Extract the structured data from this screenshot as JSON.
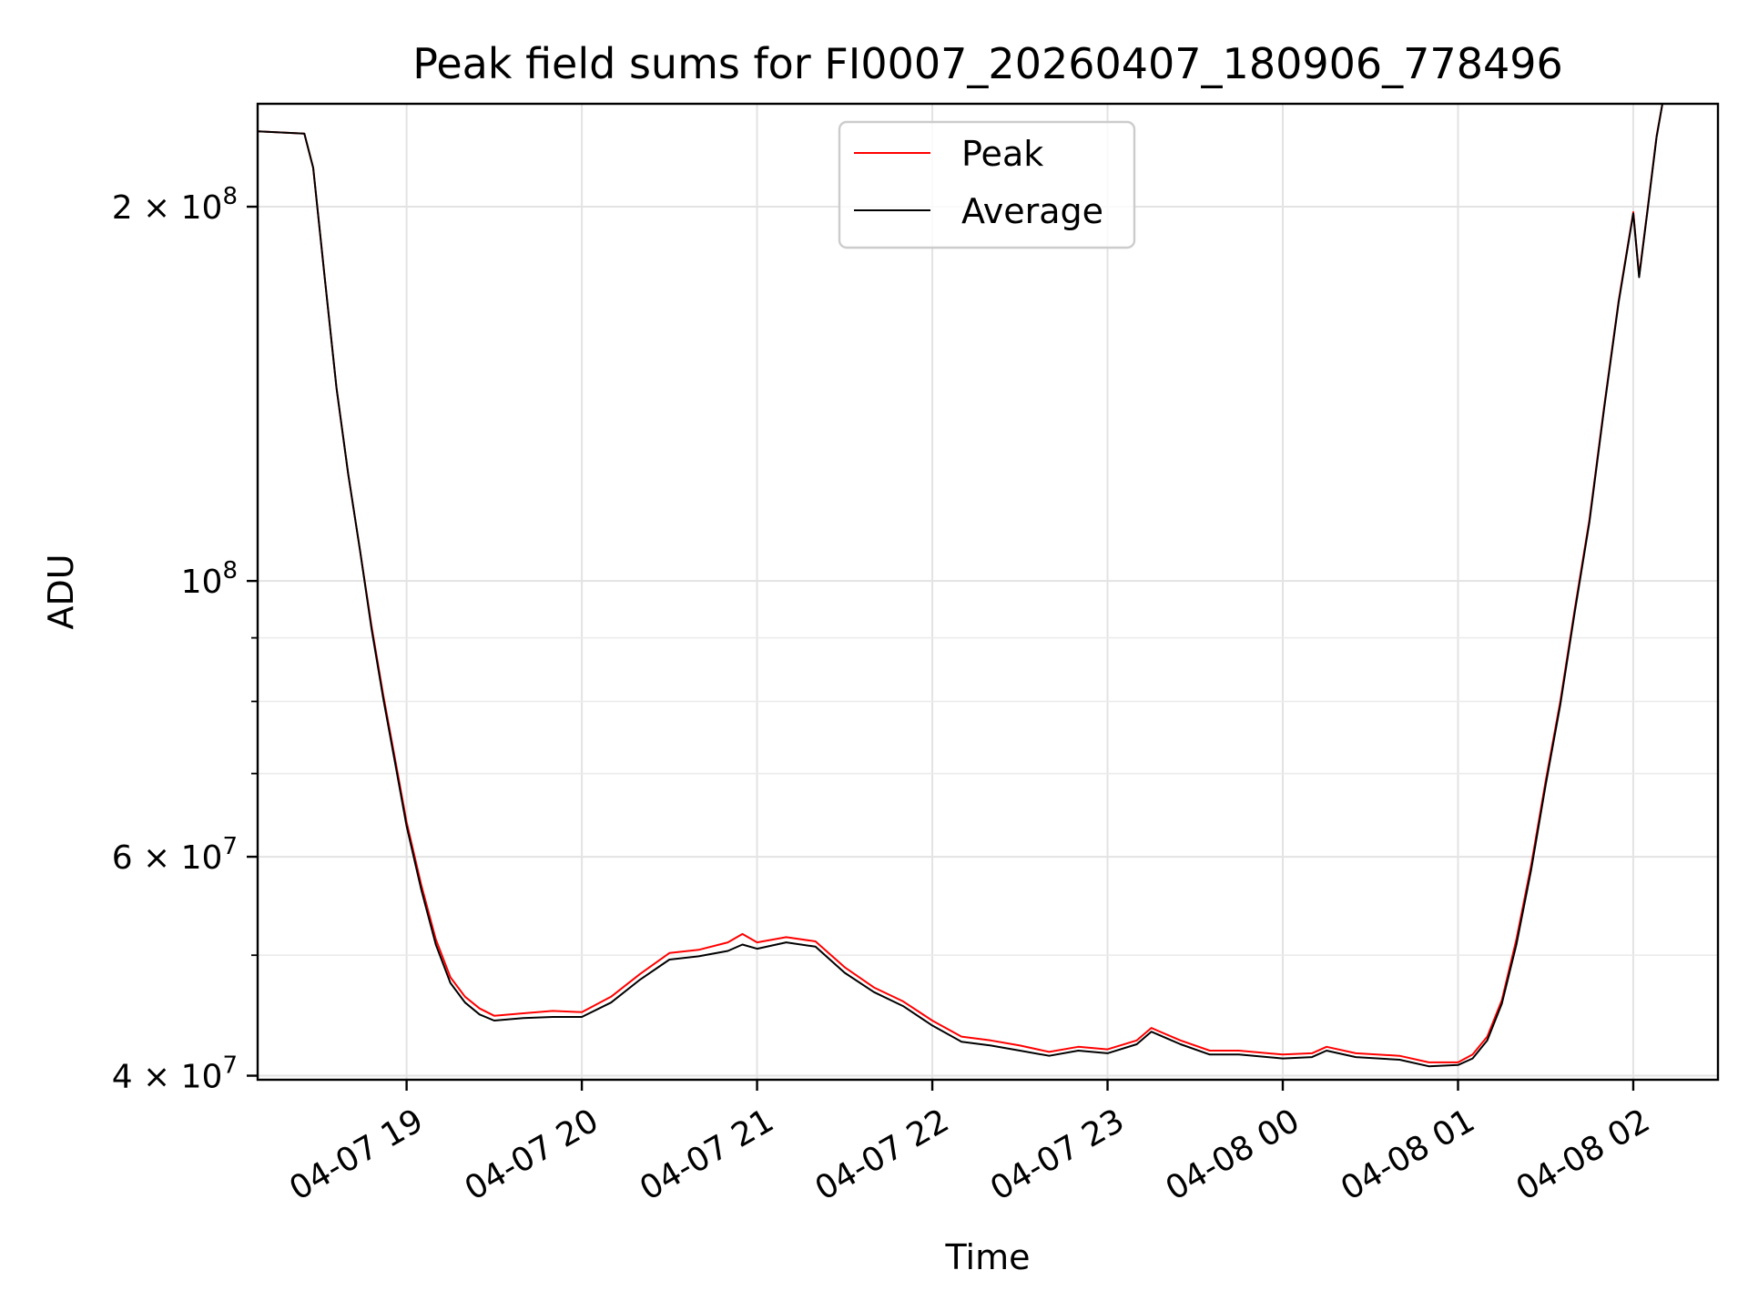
{
  "chart_data": {
    "type": "line",
    "title": "Peak field sums for FI0007_20260407_180906_778496",
    "xlabel": "Time",
    "ylabel": "ADU",
    "yscale": "log",
    "grid": true,
    "legend_position": "top-center",
    "xlim": [
      "2026-04-07 18:09",
      "2026-04-08 02:29"
    ],
    "ylim": [
      39700000,
      242000000
    ],
    "x_ticks": [
      {
        "value": "2026-04-07 19:00",
        "label": "04-07 19"
      },
      {
        "value": "2026-04-07 20:00",
        "label": "04-07 20"
      },
      {
        "value": "2026-04-07 21:00",
        "label": "04-07 21"
      },
      {
        "value": "2026-04-07 22:00",
        "label": "04-07 22"
      },
      {
        "value": "2026-04-07 23:00",
        "label": "04-07 23"
      },
      {
        "value": "2026-04-08 00:00",
        "label": "04-08 00"
      },
      {
        "value": "2026-04-08 01:00",
        "label": "04-08 01"
      },
      {
        "value": "2026-04-08 02:00",
        "label": "04-08 02"
      }
    ],
    "y_major_ticks": [
      {
        "value": 40000000,
        "mantissa": "4",
        "exponent": "7"
      },
      {
        "value": 60000000,
        "mantissa": "6",
        "exponent": "7"
      },
      {
        "value": 100000000,
        "mantissa": "",
        "exponent": "8"
      },
      {
        "value": 200000000,
        "mantissa": "2",
        "exponent": "8"
      }
    ],
    "y_minor_ticks": [
      50000000,
      70000000,
      80000000,
      90000000
    ],
    "series": [
      {
        "name": "Peak",
        "color": "#ff0000",
        "points": [
          [
            "2026-04-07 18:09",
            230000000
          ],
          [
            "2026-04-07 18:25",
            229000000
          ],
          [
            "2026-04-07 18:28",
            215000000
          ],
          [
            "2026-04-07 18:32",
            175000000
          ],
          [
            "2026-04-07 18:36",
            143000000
          ],
          [
            "2026-04-07 18:40",
            122000000
          ],
          [
            "2026-04-07 18:44",
            106000000
          ],
          [
            "2026-04-07 18:48",
            92000000
          ],
          [
            "2026-04-07 18:52",
            81000000
          ],
          [
            "2026-04-07 18:56",
            72000000
          ],
          [
            "2026-04-07 19:00",
            64000000
          ],
          [
            "2026-04-07 19:05",
            57000000
          ],
          [
            "2026-04-07 19:10",
            51500000
          ],
          [
            "2026-04-07 19:15",
            48000000
          ],
          [
            "2026-04-07 19:20",
            46300000
          ],
          [
            "2026-04-07 19:25",
            45300000
          ],
          [
            "2026-04-07 19:30",
            44700000
          ],
          [
            "2026-04-07 19:40",
            44900000
          ],
          [
            "2026-04-07 19:50",
            45100000
          ],
          [
            "2026-04-07 20:00",
            45000000
          ],
          [
            "2026-04-07 20:10",
            46300000
          ],
          [
            "2026-04-07 20:20",
            48300000
          ],
          [
            "2026-04-07 20:30",
            50200000
          ],
          [
            "2026-04-07 20:40",
            50500000
          ],
          [
            "2026-04-07 20:50",
            51200000
          ],
          [
            "2026-04-07 20:55",
            52000000
          ],
          [
            "2026-04-07 21:00",
            51200000
          ],
          [
            "2026-04-07 21:10",
            51700000
          ],
          [
            "2026-04-07 21:20",
            51300000
          ],
          [
            "2026-04-07 21:30",
            48900000
          ],
          [
            "2026-04-07 21:40",
            47100000
          ],
          [
            "2026-04-07 21:50",
            45900000
          ],
          [
            "2026-04-07 22:00",
            44300000
          ],
          [
            "2026-04-07 22:10",
            43000000
          ],
          [
            "2026-04-07 22:20",
            42700000
          ],
          [
            "2026-04-07 22:30",
            42300000
          ],
          [
            "2026-04-07 22:40",
            41800000
          ],
          [
            "2026-04-07 22:50",
            42200000
          ],
          [
            "2026-04-07 23:00",
            42000000
          ],
          [
            "2026-04-07 23:10",
            42700000
          ],
          [
            "2026-04-07 23:15",
            43700000
          ],
          [
            "2026-04-07 23:25",
            42700000
          ],
          [
            "2026-04-07 23:35",
            41900000
          ],
          [
            "2026-04-07 23:45",
            41900000
          ],
          [
            "2026-04-08 00:00",
            41600000
          ],
          [
            "2026-04-08 00:10",
            41700000
          ],
          [
            "2026-04-08 00:15",
            42200000
          ],
          [
            "2026-04-08 00:25",
            41700000
          ],
          [
            "2026-04-08 00:40",
            41500000
          ],
          [
            "2026-04-08 00:50",
            41000000
          ],
          [
            "2026-04-08 01:00",
            41000000
          ],
          [
            "2026-04-08 01:05",
            41600000
          ],
          [
            "2026-04-08 01:10",
            43000000
          ],
          [
            "2026-04-08 01:15",
            46000000
          ],
          [
            "2026-04-08 01:20",
            51500000
          ],
          [
            "2026-04-08 01:25",
            59000000
          ],
          [
            "2026-04-08 01:30",
            69000000
          ],
          [
            "2026-04-08 01:35",
            80000000
          ],
          [
            "2026-04-08 01:40",
            95000000
          ],
          [
            "2026-04-08 01:45",
            112000000
          ],
          [
            "2026-04-08 01:50",
            138000000
          ],
          [
            "2026-04-08 01:55",
            168000000
          ],
          [
            "2026-04-08 02:00",
            198000000
          ],
          [
            "2026-04-08 02:02",
            176000000
          ],
          [
            "2026-04-08 02:05",
            200000000
          ],
          [
            "2026-04-08 02:08",
            228000000
          ],
          [
            "2026-04-08 02:10",
            242000000
          ]
        ]
      },
      {
        "name": "Average",
        "color": "#000000",
        "points": [
          [
            "2026-04-07 18:09",
            230000000
          ],
          [
            "2026-04-07 18:25",
            229000000
          ],
          [
            "2026-04-07 18:28",
            215000000
          ],
          [
            "2026-04-07 18:32",
            175000000
          ],
          [
            "2026-04-07 18:36",
            143000000
          ],
          [
            "2026-04-07 18:40",
            122000000
          ],
          [
            "2026-04-07 18:44",
            106000000
          ],
          [
            "2026-04-07 18:48",
            91500000
          ],
          [
            "2026-04-07 18:52",
            80500000
          ],
          [
            "2026-04-07 18:56",
            71500000
          ],
          [
            "2026-04-07 19:00",
            63500000
          ],
          [
            "2026-04-07 19:05",
            56500000
          ],
          [
            "2026-04-07 19:10",
            51000000
          ],
          [
            "2026-04-07 19:15",
            47500000
          ],
          [
            "2026-04-07 19:20",
            45800000
          ],
          [
            "2026-04-07 19:25",
            44800000
          ],
          [
            "2026-04-07 19:30",
            44300000
          ],
          [
            "2026-04-07 19:40",
            44500000
          ],
          [
            "2026-04-07 19:50",
            44600000
          ],
          [
            "2026-04-07 20:00",
            44600000
          ],
          [
            "2026-04-07 20:10",
            45800000
          ],
          [
            "2026-04-07 20:20",
            47800000
          ],
          [
            "2026-04-07 20:30",
            49600000
          ],
          [
            "2026-04-07 20:40",
            49900000
          ],
          [
            "2026-04-07 20:50",
            50400000
          ],
          [
            "2026-04-07 20:55",
            51000000
          ],
          [
            "2026-04-07 21:00",
            50600000
          ],
          [
            "2026-04-07 21:10",
            51200000
          ],
          [
            "2026-04-07 21:20",
            50800000
          ],
          [
            "2026-04-07 21:30",
            48400000
          ],
          [
            "2026-04-07 21:40",
            46700000
          ],
          [
            "2026-04-07 21:50",
            45500000
          ],
          [
            "2026-04-07 22:00",
            43900000
          ],
          [
            "2026-04-07 22:10",
            42600000
          ],
          [
            "2026-04-07 22:20",
            42300000
          ],
          [
            "2026-04-07 22:30",
            41900000
          ],
          [
            "2026-04-07 22:40",
            41500000
          ],
          [
            "2026-04-07 22:50",
            41900000
          ],
          [
            "2026-04-07 23:00",
            41700000
          ],
          [
            "2026-04-07 23:10",
            42400000
          ],
          [
            "2026-04-07 23:15",
            43400000
          ],
          [
            "2026-04-07 23:25",
            42400000
          ],
          [
            "2026-04-07 23:35",
            41600000
          ],
          [
            "2026-04-07 23:45",
            41600000
          ],
          [
            "2026-04-08 00:00",
            41300000
          ],
          [
            "2026-04-08 00:10",
            41400000
          ],
          [
            "2026-04-08 00:15",
            41900000
          ],
          [
            "2026-04-08 00:25",
            41400000
          ],
          [
            "2026-04-08 00:40",
            41200000
          ],
          [
            "2026-04-08 00:50",
            40700000
          ],
          [
            "2026-04-08 01:00",
            40800000
          ],
          [
            "2026-04-08 01:05",
            41300000
          ],
          [
            "2026-04-08 01:10",
            42700000
          ],
          [
            "2026-04-08 01:15",
            45700000
          ],
          [
            "2026-04-08 01:20",
            51000000
          ],
          [
            "2026-04-08 01:25",
            58500000
          ],
          [
            "2026-04-08 01:30",
            68500000
          ],
          [
            "2026-04-08 01:35",
            79500000
          ],
          [
            "2026-04-08 01:40",
            94500000
          ],
          [
            "2026-04-08 01:45",
            111500000
          ],
          [
            "2026-04-08 01:50",
            137500000
          ],
          [
            "2026-04-08 01:55",
            167500000
          ],
          [
            "2026-04-08 02:00",
            197500000
          ],
          [
            "2026-04-08 02:02",
            175500000
          ],
          [
            "2026-04-08 02:05",
            199500000
          ],
          [
            "2026-04-08 02:08",
            227500000
          ],
          [
            "2026-04-08 02:10",
            242000000
          ]
        ]
      }
    ]
  }
}
